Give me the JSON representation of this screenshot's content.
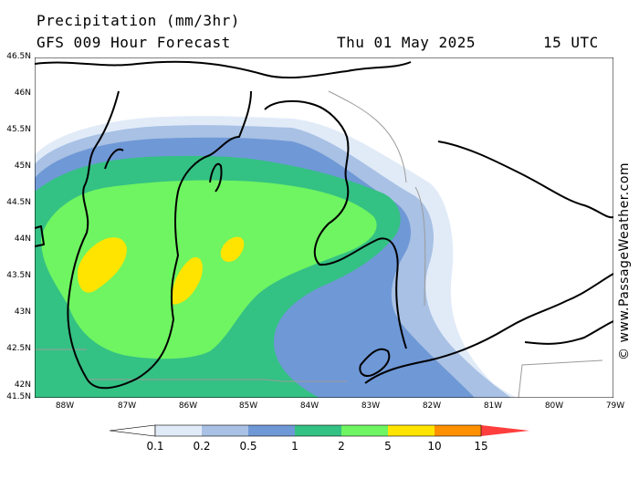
{
  "header": {
    "title": "Precipitation (mm/3hr)",
    "model": "GFS 009 Hour Forecast",
    "date": "Thu 01 May 2025",
    "time": "15 UTC"
  },
  "watermark": "© www.PassageWeather.com",
  "axes": {
    "lat_labels": [
      "46.5N",
      "46N",
      "45.5N",
      "45N",
      "44.5N",
      "44N",
      "43.5N",
      "43N",
      "42.5N",
      "42N",
      "41.5N"
    ],
    "lon_labels": [
      "88W",
      "87W",
      "86W",
      "85W",
      "84W",
      "83W",
      "82W",
      "81W",
      "80W",
      "79W"
    ]
  },
  "colors": {
    "land": "#ffffff",
    "c01": "#e1ebf8",
    "c02": "#a8c1e4",
    "c05": "#6f98d6",
    "c1": "#34c184",
    "c2": "#6ff462",
    "c5": "#ffe400",
    "c10": "#ff9000",
    "c15": "#ff3e3e",
    "coast": "#000000",
    "border": "#9b9b9b"
  },
  "legend": {
    "labels": [
      "0.1",
      "0.2",
      "0.5",
      "1",
      "2",
      "5",
      "10",
      "15"
    ]
  }
}
